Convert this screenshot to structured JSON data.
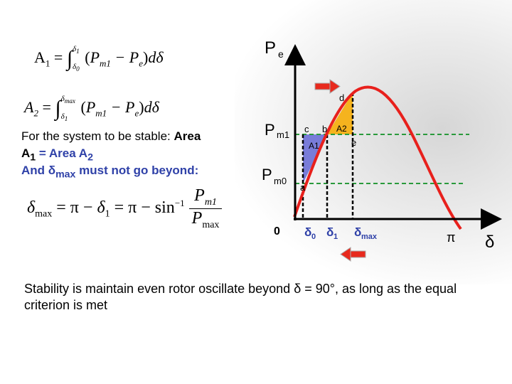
{
  "equations": {
    "a1": "A₁ = ∫ from δ₀ to δ₁ (Pm1 − Pe) dδ",
    "a2": "A₂ = ∫ from δ₁ to δmax (Pm1 − Pe) dδ",
    "dmax": "δmax = π − δ₁ = π − sin⁻¹(Pm1 / Pmax)"
  },
  "text": {
    "stable_intro": "For the system to be stable:",
    "area_word": "Area",
    "area_eq": "A",
    "area_eq_sub": "1",
    "equals": " = Area A",
    "equals_sub": "2",
    "and_text": "And δ",
    "and_sub": "max",
    "beyond": " must not go beyond:",
    "stability_note": "Stability is maintain even rotor oscillate beyond δ = 90°, as long as the equal criterion is met"
  },
  "graph": {
    "y_axis_label": "P",
    "y_axis_sub": "e",
    "pm1_label": "P",
    "pm1_sub": "m1",
    "pm0_label": "P",
    "pm0_sub": "m0",
    "origin": "0",
    "x_axis_label": "δ",
    "pi_label": "π",
    "delta0": "δ",
    "delta0_sub": "0",
    "delta1": "δ",
    "delta1_sub": "1",
    "deltamax": "δ",
    "deltamax_sub": "max",
    "point_a": "a",
    "point_b": "b",
    "point_c": "c",
    "point_d": "d",
    "point_e": "e",
    "area1_label": "A1",
    "area2_label": "A2"
  },
  "colors": {
    "curve": "#e8201c",
    "area1": "#6b6fd6",
    "area2": "#f5b31e",
    "pm_lines": "#2a9a3c",
    "arrow": "#e82a1e"
  }
}
